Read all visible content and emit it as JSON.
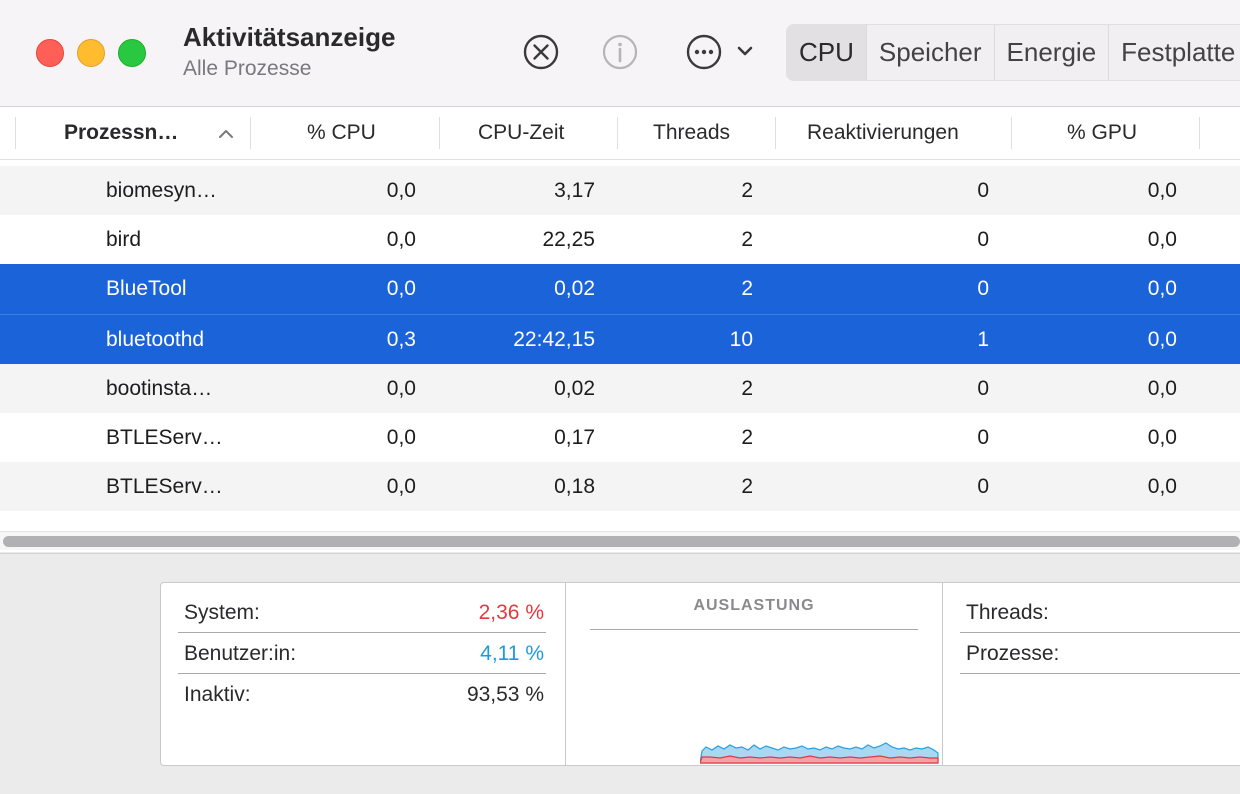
{
  "window": {
    "title": "Aktivitätsanzeige",
    "subtitle": "Alle Prozesse"
  },
  "toolbar": {
    "icons": [
      "stop-process-icon",
      "info-icon",
      "more-icon",
      "chevron-down-icon"
    ],
    "tabs": [
      {
        "label": "CPU",
        "active": true
      },
      {
        "label": "Speicher",
        "active": false
      },
      {
        "label": "Energie",
        "active": false
      },
      {
        "label": "Festplatte",
        "active": false
      }
    ]
  },
  "table": {
    "columns": [
      "Prozessn…",
      "% CPU",
      "CPU-Zeit",
      "Threads",
      "Reaktivierungen",
      "% GPU"
    ],
    "sort_column": "Prozessn…",
    "sort_direction": "ascending",
    "rows": [
      {
        "name": "biomesyn…",
        "cpu": "0,0",
        "cpu_time": "3,17",
        "threads": "2",
        "wakeups": "0",
        "gpu": "0,0",
        "selected": false
      },
      {
        "name": "bird",
        "cpu": "0,0",
        "cpu_time": "22,25",
        "threads": "2",
        "wakeups": "0",
        "gpu": "0,0",
        "selected": false
      },
      {
        "name": "BlueTool",
        "cpu": "0,0",
        "cpu_time": "0,02",
        "threads": "2",
        "wakeups": "0",
        "gpu": "0,0",
        "selected": true
      },
      {
        "name": "bluetoothd",
        "cpu": "0,3",
        "cpu_time": "22:42,15",
        "threads": "10",
        "wakeups": "1",
        "gpu": "0,0",
        "selected": true
      },
      {
        "name": "bootinsta…",
        "cpu": "0,0",
        "cpu_time": "0,02",
        "threads": "2",
        "wakeups": "0",
        "gpu": "0,0",
        "selected": false
      },
      {
        "name": "BTLEServ…",
        "cpu": "0,0",
        "cpu_time": "0,17",
        "threads": "2",
        "wakeups": "0",
        "gpu": "0,0",
        "selected": false
      },
      {
        "name": "BTLEServ…",
        "cpu": "0,0",
        "cpu_time": "0,18",
        "threads": "2",
        "wakeups": "0",
        "gpu": "0,0",
        "selected": false
      }
    ]
  },
  "stats": {
    "system": {
      "label": "System:",
      "value": "2,36 %"
    },
    "user": {
      "label": "Benutzer:in:",
      "value": "4,11 %"
    },
    "idle": {
      "label": "Inaktiv:",
      "value": "93,53 %"
    },
    "graph_title": "AUSLASTUNG",
    "threads_label": "Threads:",
    "processes_label": "Prozesse:"
  },
  "colors": {
    "selection": "#1a63d9",
    "system": "#e0393e",
    "user": "#1e9be0",
    "close": "#ff5f57",
    "minimize": "#febc2e",
    "zoom": "#28c840"
  }
}
